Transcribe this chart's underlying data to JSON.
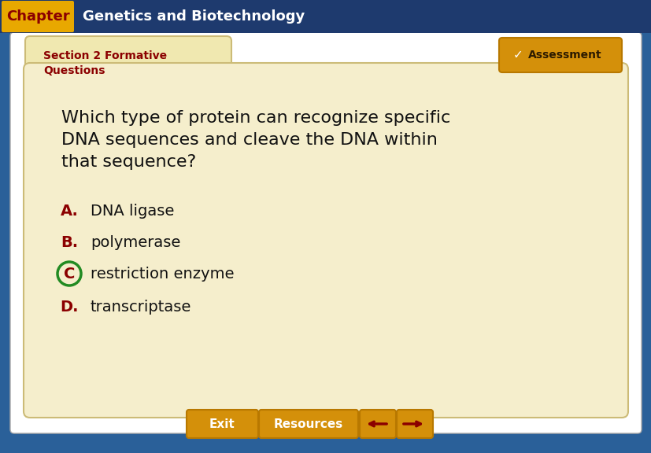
{
  "header_bg": "#1e3a6e",
  "header_text_chapter": "Chapter",
  "header_text_title": "Genetics and Biotechnology",
  "header_text_color": "#ffffff",
  "chapter_label_bg": "#e8a800",
  "chapter_label_color": "#8b0000",
  "section_label_line1": "Section 2 Formative",
  "section_label_line2": "Questions",
  "section_label_color": "#8b0000",
  "tab_bg": "#f0e8b0",
  "main_bg": "#f5eecc",
  "question_text_line1": "Which type of protein can recognize specific",
  "question_text_line2": "DNA sequences and cleave the DNA within",
  "question_text_line3": "that sequence?",
  "question_color": "#111111",
  "answer_letters": [
    "A",
    "B",
    "C",
    "D"
  ],
  "answer_texts": [
    "DNA ligase",
    "polymerase",
    "restriction enzyme",
    "transcriptase"
  ],
  "answer_color": "#8b0000",
  "answer_text_color": "#111111",
  "correct_answer_index": 2,
  "correct_circle_color": "#228b22",
  "assessment_bg": "#d4900a",
  "assessment_text": "Assessment",
  "assessment_check": "✓",
  "exit_bg": "#d4900a",
  "exit_text": "Exit",
  "resources_bg": "#d4900a",
  "resources_text": "Resources",
  "arrow_color": "#8b0000",
  "outer_bg": "#2a6099",
  "outer_content_bg": "#ffffff",
  "fig_width": 8.28,
  "fig_height": 5.76,
  "dpi": 100
}
